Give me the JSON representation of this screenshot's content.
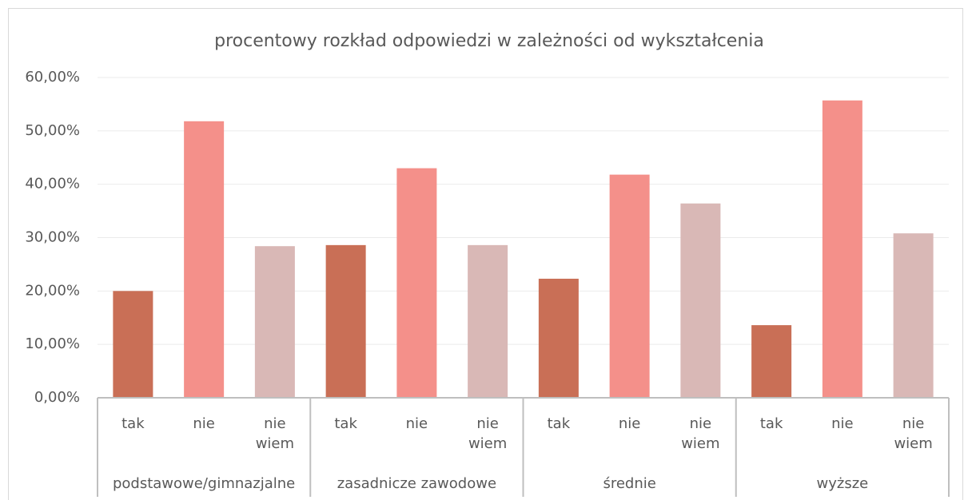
{
  "chart_data": {
    "type": "bar",
    "title": "procentowy rozkład odpowiedzi w zależności od wykształcenia",
    "categories": [
      "podstawowe/gimnazjalne",
      "zasadnicze zawodowe",
      "średnie",
      "wyższe"
    ],
    "series": [
      {
        "name": "tak",
        "color": "#c96f56",
        "values": [
          20.0,
          28.6,
          22.3,
          13.6
        ]
      },
      {
        "name": "nie",
        "color": "#f4908a",
        "values": [
          51.8,
          43.0,
          41.8,
          55.7
        ]
      },
      {
        "name": "nie wiem",
        "color": "#d9b8b6",
        "values": [
          28.4,
          28.6,
          36.4,
          30.8
        ]
      }
    ],
    "ylim": [
      0,
      60
    ],
    "yticks": [
      {
        "value": 0,
        "label": "0,00%"
      },
      {
        "value": 10,
        "label": "10,00%"
      },
      {
        "value": 20,
        "label": "20,00%"
      },
      {
        "value": 30,
        "label": "30,00%"
      },
      {
        "value": 40,
        "label": "40,00%"
      },
      {
        "value": 50,
        "label": "50,00%"
      },
      {
        "value": 60,
        "label": "60,00%"
      }
    ],
    "grid": true
  }
}
